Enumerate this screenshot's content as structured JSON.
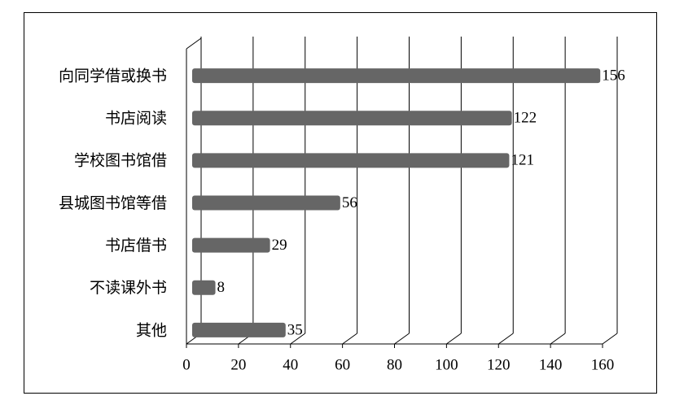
{
  "chart_data": {
    "type": "bar",
    "orientation": "horizontal",
    "categories": [
      "向同学借或换书",
      "书店阅读",
      "学校图书馆借",
      "县城图书馆等借",
      "书店借书",
      "不读课外书",
      "其他"
    ],
    "values": [
      156,
      122,
      121,
      56,
      29,
      8,
      35
    ],
    "color": "#666666",
    "xlim": [
      0,
      160
    ],
    "xticks": [
      0,
      20,
      40,
      60,
      80,
      100,
      120,
      140,
      160
    ],
    "grid": true
  }
}
